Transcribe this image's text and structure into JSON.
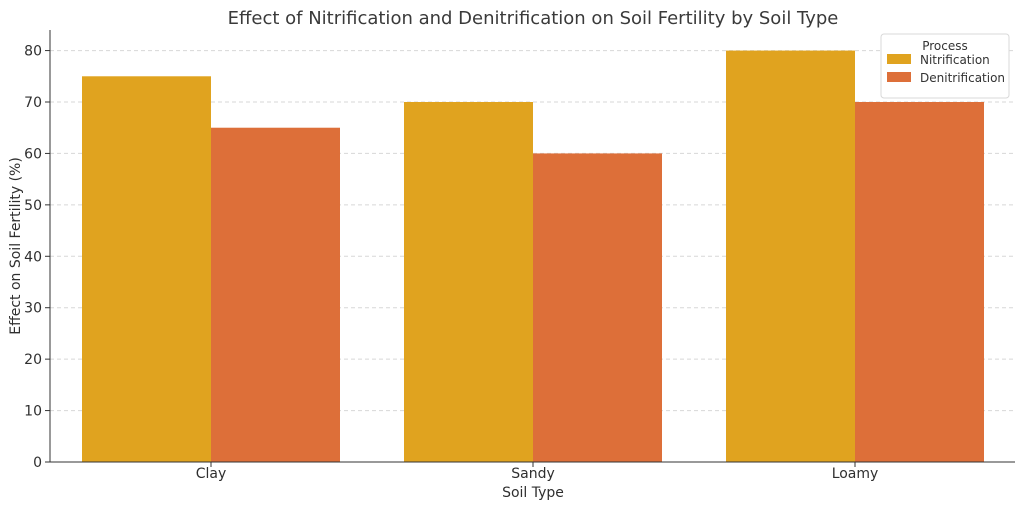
{
  "chart_data": {
    "type": "bar",
    "title": "Effect of Nitrification and Denitrification on Soil Fertility by Soil Type",
    "xlabel": "Soil Type",
    "ylabel": "Effect on Soil Fertility (%)",
    "categories": [
      "Clay",
      "Sandy",
      "Loamy"
    ],
    "series": [
      {
        "name": "Nitrification",
        "values": [
          75,
          70,
          80
        ],
        "color": "#E0A31F"
      },
      {
        "name": "Denitrification",
        "values": [
          65,
          60,
          70
        ],
        "color": "#DD6F39"
      }
    ],
    "ylim": [
      0,
      84
    ],
    "yticks": [
      0,
      10,
      20,
      30,
      40,
      50,
      60,
      70,
      80
    ],
    "grid": true,
    "legend": {
      "title": "Process",
      "placement": "top-right"
    }
  }
}
